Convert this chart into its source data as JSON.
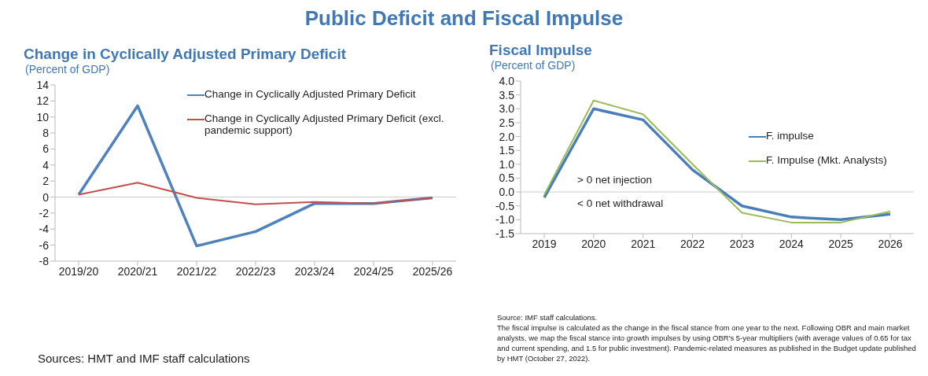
{
  "chart_data": [
    {
      "type": "other",
      "title": "Public Deficit and Fiscal Impulse"
    },
    {
      "type": "line",
      "title": "Change in Cyclically Adjusted Primary Deficit",
      "subtitle": "(Percent of GDP)",
      "categories": [
        "2019/20",
        "2020/21",
        "2021/22",
        "2022/23",
        "2023/24",
        "2024/25",
        "2025/26"
      ],
      "series": [
        {
          "name": "Change in Cyclically Adjusted Primary Deficit",
          "color": "#4f81bd",
          "values": [
            0.3,
            11.4,
            -6.1,
            -4.3,
            -0.8,
            -0.8,
            -0.1
          ]
        },
        {
          "name": "Change in Cyclically Adjusted Primary Deficit (excl. pandemic support)",
          "color": "#c0504d",
          "values": [
            0.3,
            1.8,
            -0.1,
            -0.9,
            -0.6,
            -0.8,
            -0.1
          ]
        }
      ],
      "ylim": [
        -8,
        14
      ],
      "yticks": [
        -8,
        -6,
        -4,
        -2,
        0,
        2,
        4,
        6,
        8,
        10,
        12,
        14
      ],
      "legend": "top right",
      "annotations": [
        "Sources: HMT and IMF staff calculations"
      ]
    },
    {
      "type": "line",
      "title": "Fiscal Impulse",
      "subtitle": "(Percent of GDP)",
      "categories": [
        "2019",
        "2020",
        "2021",
        "2022",
        "2023",
        "2024",
        "2025",
        "2026"
      ],
      "series": [
        {
          "name": "F. impulse",
          "color": "#4a7ebb",
          "values": [
            -0.2,
            3.0,
            2.6,
            0.8,
            -0.5,
            -0.9,
            -1.0,
            -0.8
          ]
        },
        {
          "name": "F. Impulse (Mkt. Analysts)",
          "color": "#9bbb59",
          "values": [
            -0.1,
            3.3,
            2.8,
            1.0,
            -0.75,
            -1.1,
            -1.1,
            -0.7
          ]
        }
      ],
      "ylim": [
        -1.5,
        4.0
      ],
      "yticks": [
        {
          "value": -1.5,
          "label": "-1.5"
        },
        {
          "value": -1,
          "label": "-1.0"
        },
        {
          "value": -0.5,
          "label": "-0.5"
        },
        {
          "value": 0,
          "label": "0.0"
        },
        {
          "value": 0.5,
          "label": "0.5"
        },
        {
          "value": 1,
          "label": "1.0"
        },
        {
          "value": 1.5,
          "label": "1.5"
        },
        {
          "value": 2,
          "label": "2.0"
        },
        {
          "value": 2.5,
          "label": "2.5"
        },
        {
          "value": 3,
          "label": "3.0"
        },
        {
          "value": 3.5,
          "label": "3.5"
        },
        {
          "value": 4,
          "label": "4.0"
        }
      ],
      "legend": "right",
      "annotations": [
        "> 0 net injection",
        "< 0 net withdrawal",
        "Source: IMF staff calculations.",
        "The fiscal impulse is calculated as the change in the fiscal stance from one year to the next. Following OBR and main market analysts, we map the fiscal stance into growth impulses by using OBR's 5-year multipliers (with average values of 0.65 for tax and current spending, and 1.5 for public investment). Pandemic-related measures as published in the Budget update published by HMT (October 27, 2022)."
      ]
    }
  ]
}
